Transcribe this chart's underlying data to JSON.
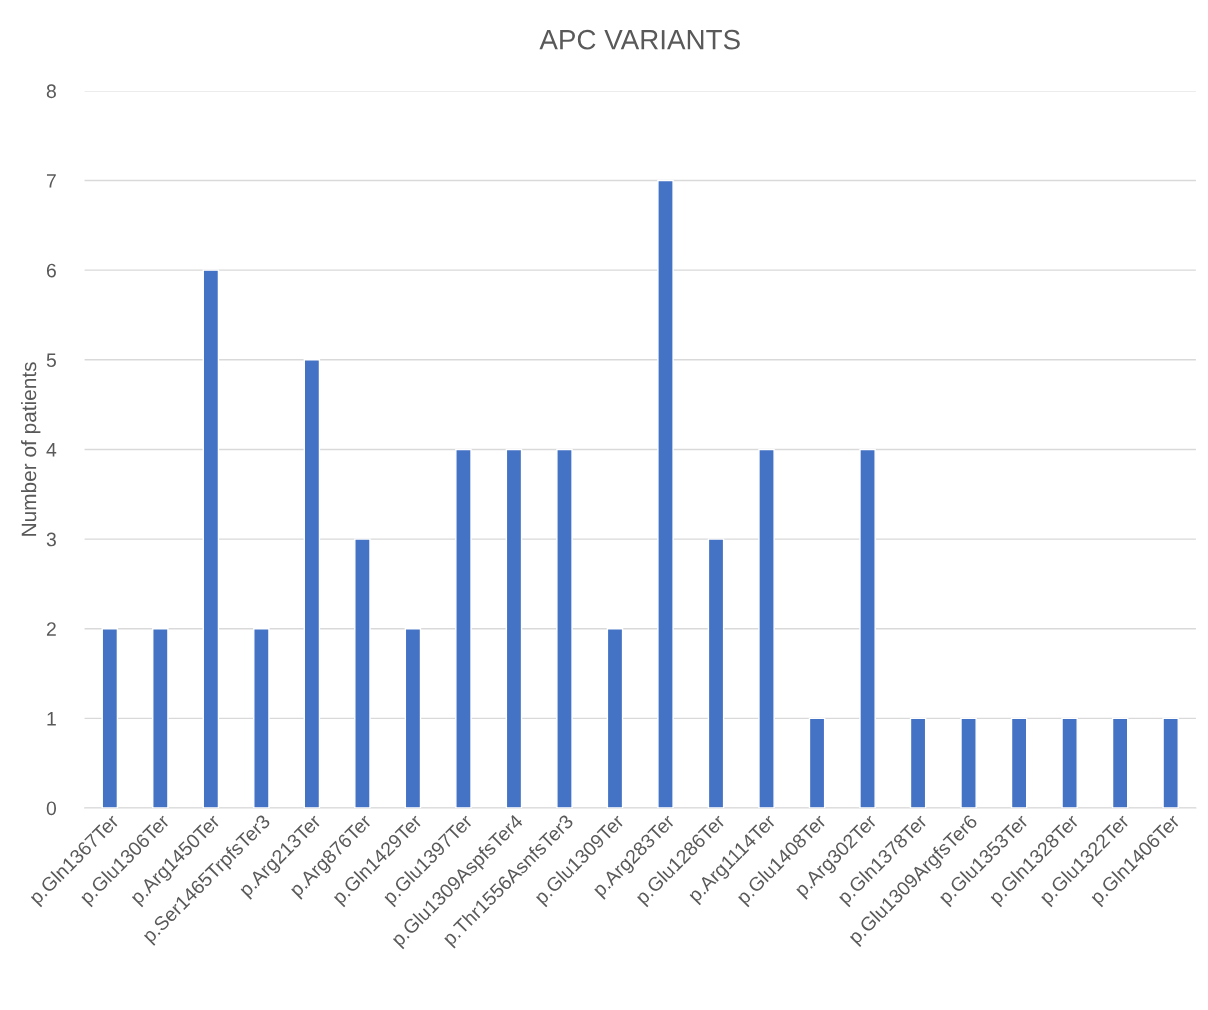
{
  "chart_data": {
    "type": "bar",
    "title": "APC VARIANTS",
    "ylabel": "Number of patients",
    "categories": [
      "p.Gln1367Ter",
      "p.Glu1306Ter",
      "p.Arg1450Ter",
      "p.Ser1465TrpfsTer3",
      "p.Arg213Ter",
      "p.Arg876Ter",
      "p.Gln1429Ter",
      "p.Glu1397Ter",
      "p.Glu1309AspfsTer4",
      "p.Thr1556AsnfsTer3",
      "p.Glu1309Ter",
      "p.Arg283Ter",
      "p.Glu1286Ter",
      "p.Arg1114Ter",
      "p.Glu1408Ter",
      "p.Arg302Ter",
      "p.Gln1378Ter",
      "p.Glu1309ArgfsTer6",
      "p.Glu1353Ter",
      "p.Gln1328Ter",
      "p.Glu1322Ter",
      "p.Gln1406Ter"
    ],
    "values": [
      2,
      2,
      6,
      2,
      5,
      3,
      2,
      4,
      4,
      4,
      2,
      7,
      3,
      4,
      1,
      4,
      1,
      1,
      1,
      1,
      1,
      1
    ],
    "color": "#4472c4",
    "ylim": [
      0,
      8
    ],
    "yticks": [
      0,
      1,
      2,
      3,
      4,
      5,
      6,
      7,
      8
    ],
    "grid": "y"
  }
}
